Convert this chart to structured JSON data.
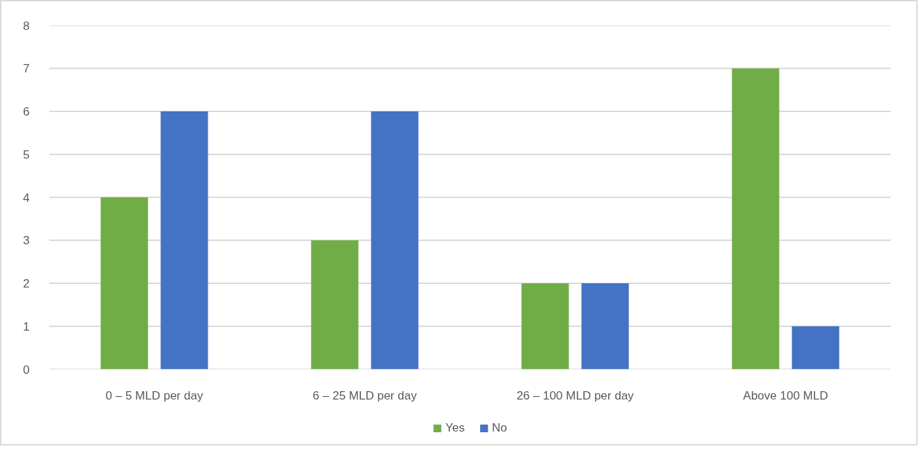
{
  "chart_data": {
    "type": "bar",
    "categories": [
      "0 – 5 MLD per day",
      "6 – 25 MLD per day",
      "26 – 100 MLD per day",
      "Above 100 MLD"
    ],
    "series": [
      {
        "name": "Yes",
        "color": "#70ad47",
        "values": [
          4,
          3,
          2,
          7
        ]
      },
      {
        "name": "No",
        "color": "#4472c4",
        "values": [
          6,
          6,
          2,
          1
        ]
      }
    ],
    "ylim": [
      0,
      8
    ],
    "yticks": [
      0,
      1,
      2,
      3,
      4,
      5,
      6,
      7,
      8
    ],
    "grid": "y",
    "legend": "bottom"
  }
}
